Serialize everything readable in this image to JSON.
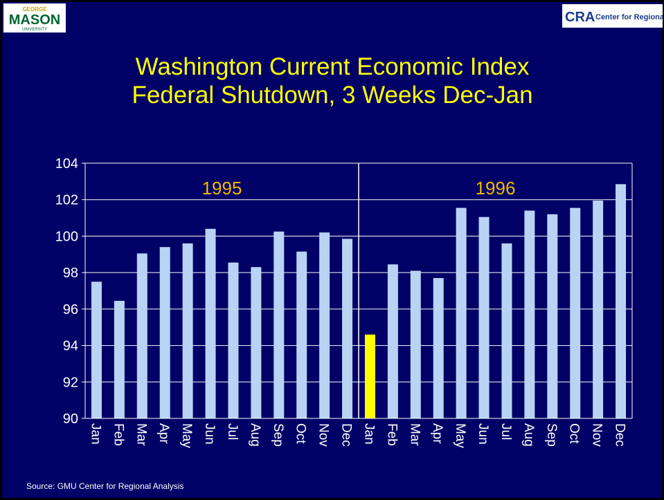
{
  "logos": {
    "left": [
      "GEORGE",
      "MASON",
      "UNIVERSITY"
    ],
    "right": [
      "CRA",
      "Center for Regional Analysis"
    ]
  },
  "chart_data": {
    "type": "bar",
    "title": [
      "Washington Current Economic Index",
      "Federal Shutdown, 3 Weeks Dec-Jan"
    ],
    "categories": [
      "Jan",
      "Feb",
      "Mar",
      "Apr",
      "May",
      "Jun",
      "Jul",
      "Aug",
      "Sep",
      "Oct",
      "Nov",
      "Dec",
      "Jan",
      "Feb",
      "Mar",
      "Apr",
      "May",
      "Jun",
      "Jul",
      "Aug",
      "Sep",
      "Oct",
      "Nov",
      "Dec"
    ],
    "values": [
      97.5,
      96.45,
      99.05,
      99.4,
      99.6,
      100.4,
      98.55,
      98.3,
      100.25,
      99.15,
      100.2,
      99.85,
      94.6,
      98.45,
      98.1,
      97.7,
      101.55,
      101.05,
      99.6,
      101.4,
      101.2,
      101.55,
      101.95,
      102.85
    ],
    "colors": [
      "#b9d3f5",
      "#b9d3f5",
      "#b9d3f5",
      "#b9d3f5",
      "#b9d3f5",
      "#b9d3f5",
      "#b9d3f5",
      "#b9d3f5",
      "#b9d3f5",
      "#b9d3f5",
      "#b9d3f5",
      "#b9d3f5",
      "#ffff00",
      "#b9d3f5",
      "#b9d3f5",
      "#b9d3f5",
      "#b9d3f5",
      "#b9d3f5",
      "#b9d3f5",
      "#b9d3f5",
      "#b9d3f5",
      "#b9d3f5",
      "#b9d3f5",
      "#b9d3f5"
    ],
    "annotations": [
      "1995",
      "1996"
    ],
    "ylim": [
      90,
      104
    ],
    "yticks": [
      90,
      92,
      94,
      96,
      98,
      100,
      102,
      104
    ],
    "grid": true,
    "source": "Source: GMU Center for Regional Analysis"
  }
}
